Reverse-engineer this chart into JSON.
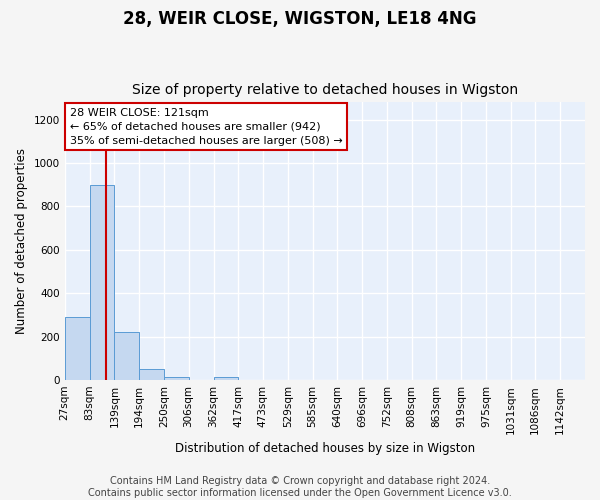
{
  "title": "28, WEIR CLOSE, WIGSTON, LE18 4NG",
  "subtitle": "Size of property relative to detached houses in Wigston",
  "xlabel": "Distribution of detached houses by size in Wigston",
  "ylabel": "Number of detached properties",
  "bin_labels": [
    "27sqm",
    "83sqm",
    "139sqm",
    "194sqm",
    "250sqm",
    "306sqm",
    "362sqm",
    "417sqm",
    "473sqm",
    "529sqm",
    "585sqm",
    "640sqm",
    "696sqm",
    "752sqm",
    "808sqm",
    "863sqm",
    "919sqm",
    "975sqm",
    "1031sqm",
    "1086sqm",
    "1142sqm"
  ],
  "bin_edges": [
    27,
    83,
    139,
    194,
    250,
    306,
    362,
    417,
    473,
    529,
    585,
    640,
    696,
    752,
    808,
    863,
    919,
    975,
    1031,
    1086,
    1142
  ],
  "bar_heights": [
    290,
    900,
    220,
    50,
    15,
    0,
    15,
    0,
    0,
    0,
    0,
    0,
    0,
    0,
    0,
    0,
    0,
    0,
    0,
    0
  ],
  "bar_color": "#c5d8f0",
  "bar_edge_color": "#5a9bd4",
  "property_line_x": 121,
  "property_line_color": "#cc0000",
  "annotation_line1": "28 WEIR CLOSE: 121sqm",
  "annotation_line2": "← 65% of detached houses are smaller (942)",
  "annotation_line3": "35% of semi-detached houses are larger (508) →",
  "annotation_box_color": "#ffffff",
  "annotation_box_edge_color": "#cc0000",
  "ylim": [
    0,
    1280
  ],
  "yticks": [
    0,
    200,
    400,
    600,
    800,
    1000,
    1200
  ],
  "footer_text": "Contains HM Land Registry data © Crown copyright and database right 2024.\nContains public sector information licensed under the Open Government Licence v3.0.",
  "background_color": "#e8f0fb",
  "grid_color": "#ffffff",
  "fig_background": "#f5f5f5",
  "title_fontsize": 12,
  "subtitle_fontsize": 10,
  "axis_label_fontsize": 8.5,
  "tick_fontsize": 7.5,
  "footer_fontsize": 7
}
